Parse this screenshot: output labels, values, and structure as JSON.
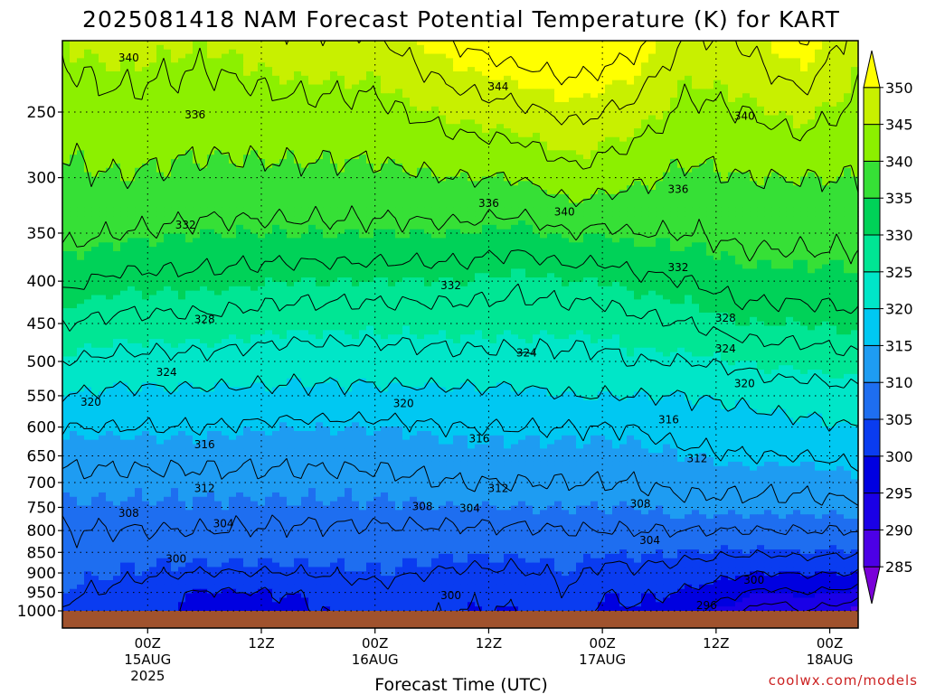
{
  "chart_data": {
    "type": "contour",
    "title": "2025081418 NAM Forecast Potential Temperature (K) for KART",
    "xlabel": "Forecast Time (UTC)",
    "ylabel": "",
    "credit": "coolwx.com/models",
    "y_scale": "log",
    "ylim": [
      1000,
      200
    ],
    "y_ticks": [
      250,
      300,
      350,
      400,
      450,
      500,
      550,
      600,
      650,
      700,
      750,
      800,
      850,
      900,
      950,
      1000
    ],
    "x_range_hours": [
      -3,
      81
    ],
    "x_ticks": [
      {
        "hour": 6,
        "lines": [
          "00Z",
          "15AUG",
          "2025"
        ]
      },
      {
        "hour": 18,
        "lines": [
          "12Z"
        ]
      },
      {
        "hour": 30,
        "lines": [
          "00Z",
          "16AUG"
        ]
      },
      {
        "hour": 42,
        "lines": [
          "12Z"
        ]
      },
      {
        "hour": 54,
        "lines": [
          "00Z",
          "17AUG"
        ]
      },
      {
        "hour": 66,
        "lines": [
          "12Z"
        ]
      },
      {
        "hour": 78,
        "lines": [
          "00Z",
          "18AUG"
        ]
      }
    ],
    "grid": true,
    "colorbar": {
      "levels": [
        285,
        290,
        295,
        300,
        305,
        310,
        315,
        320,
        325,
        330,
        335,
        340,
        345,
        350
      ],
      "colors": [
        "#7a00d8",
        "#4c00e6",
        "#1a00e6",
        "#0000e0",
        "#0a3cf0",
        "#1e6ef0",
        "#1e9cf2",
        "#00c8f2",
        "#00e6c8",
        "#00e694",
        "#00d258",
        "#36e036",
        "#8cf000",
        "#c8f000",
        "#ffff00"
      ]
    },
    "contour_step": 4,
    "field": {
      "hours": [
        -3,
        0,
        3,
        6,
        9,
        12,
        15,
        18,
        21,
        24,
        27,
        30,
        33,
        36,
        39,
        42,
        45,
        48,
        51,
        54,
        57,
        60,
        63,
        66,
        69,
        72,
        75,
        78,
        81
      ],
      "pressures": [
        1000,
        975,
        950,
        925,
        900,
        875,
        850,
        825,
        800,
        775,
        750,
        725,
        700,
        675,
        650,
        625,
        600,
        575,
        550,
        525,
        500,
        475,
        450,
        425,
        400,
        375,
        350,
        325,
        300,
        275,
        250,
        225,
        200
      ],
      "profiles": {
        "hour": [
          -3,
          3,
          12,
          21,
          30,
          39,
          45,
          51,
          54,
          57,
          63,
          69,
          72,
          75,
          81
        ],
        "theta": [
          [
            303,
            305,
            306,
            307,
            308,
            309.5,
            311,
            313,
            316,
            320,
            324,
            328,
            333,
            337,
            339,
            342
          ],
          [
            302,
            303,
            305,
            306,
            308,
            309.5,
            311,
            313,
            316,
            319,
            323,
            327,
            331,
            336,
            340,
            343
          ],
          [
            298.5,
            299.5,
            304,
            306,
            308,
            309.5,
            311,
            313,
            316,
            319,
            323,
            327,
            331,
            335,
            339,
            342
          ],
          [
            299,
            300,
            304,
            306,
            307.5,
            309.5,
            311,
            313,
            315,
            319,
            322,
            326,
            330,
            335,
            339,
            343
          ],
          [
            302,
            303,
            305,
            306,
            307.5,
            309.5,
            311,
            313,
            315,
            319,
            322,
            326,
            330,
            335,
            339,
            343
          ],
          [
            300,
            301,
            303.5,
            305.5,
            307.5,
            310,
            312,
            314,
            316,
            319,
            323,
            326,
            330,
            335,
            340,
            346
          ],
          [
            300,
            301,
            303.5,
            305.5,
            307.5,
            310,
            312,
            314,
            316,
            319,
            323,
            326,
            329,
            334,
            340,
            347
          ],
          [
            303,
            304,
            305,
            306,
            308,
            310,
            312,
            314,
            316,
            320,
            323,
            326,
            330,
            336,
            343,
            349
          ],
          [
            298.5,
            300,
            303,
            305,
            308,
            310,
            312,
            314,
            316,
            320,
            323,
            326,
            330,
            335,
            342,
            348
          ],
          [
            299.5,
            301,
            303.5,
            305.5,
            308,
            310,
            312,
            314,
            316,
            320,
            324,
            327,
            331,
            336,
            341,
            347
          ],
          [
            298,
            299.5,
            302.5,
            305,
            308,
            311,
            313,
            315,
            318,
            320,
            324,
            328,
            332,
            336,
            339,
            343
          ],
          [
            292,
            296,
            300.5,
            304.5,
            308,
            311,
            313,
            316,
            318,
            321,
            325,
            330,
            334,
            337,
            340,
            344
          ],
          [
            289,
            295,
            300,
            304.5,
            308,
            311,
            313,
            316,
            318.5,
            322,
            326,
            330,
            334,
            337,
            340,
            345
          ],
          [
            292,
            296,
            300.5,
            305,
            308,
            311,
            313,
            316,
            319,
            322,
            326,
            330,
            334,
            337,
            340,
            346
          ],
          [
            289,
            294.5,
            300,
            304.5,
            308,
            311,
            314,
            317,
            320,
            323,
            327,
            331,
            334,
            337,
            340,
            343
          ]
        ],
        "pressure_levels": [
          1000,
          950,
          900,
          850,
          800,
          750,
          700,
          650,
          600,
          550,
          500,
          450,
          400,
          350,
          300,
          250
        ]
      }
    },
    "contour_labels": [
      {
        "text": "340",
        "hour": 4,
        "p": 215
      },
      {
        "text": "336",
        "hour": 11,
        "p": 252
      },
      {
        "text": "332",
        "hour": 10,
        "p": 342
      },
      {
        "text": "328",
        "hour": 12,
        "p": 445
      },
      {
        "text": "324",
        "hour": 8,
        "p": 515
      },
      {
        "text": "320",
        "hour": 0,
        "p": 560
      },
      {
        "text": "316",
        "hour": 12,
        "p": 630
      },
      {
        "text": "312",
        "hour": 12,
        "p": 712
      },
      {
        "text": "308",
        "hour": 4,
        "p": 762
      },
      {
        "text": "304",
        "hour": 14,
        "p": 785
      },
      {
        "text": "300",
        "hour": 9,
        "p": 865
      },
      {
        "text": "344",
        "hour": 43,
        "p": 233
      },
      {
        "text": "336",
        "hour": 42,
        "p": 322
      },
      {
        "text": "340",
        "hour": 50,
        "p": 330
      },
      {
        "text": "332",
        "hour": 38,
        "p": 405
      },
      {
        "text": "320",
        "hour": 33,
        "p": 562
      },
      {
        "text": "316",
        "hour": 41,
        "p": 620
      },
      {
        "text": "312",
        "hour": 43,
        "p": 712
      },
      {
        "text": "308",
        "hour": 35,
        "p": 748
      },
      {
        "text": "304",
        "hour": 40,
        "p": 752
      },
      {
        "text": "324",
        "hour": 46,
        "p": 488
      },
      {
        "text": "300",
        "hour": 38,
        "p": 958
      },
      {
        "text": "340",
        "hour": 69,
        "p": 253
      },
      {
        "text": "336",
        "hour": 62,
        "p": 310
      },
      {
        "text": "332",
        "hour": 62,
        "p": 385
      },
      {
        "text": "328",
        "hour": 67,
        "p": 443
      },
      {
        "text": "324",
        "hour": 67,
        "p": 483
      },
      {
        "text": "320",
        "hour": 69,
        "p": 532
      },
      {
        "text": "316",
        "hour": 61,
        "p": 588
      },
      {
        "text": "312",
        "hour": 64,
        "p": 655
      },
      {
        "text": "308",
        "hour": 58,
        "p": 743
      },
      {
        "text": "304",
        "hour": 59,
        "p": 822
      },
      {
        "text": "300",
        "hour": 70,
        "p": 918
      },
      {
        "text": "296",
        "hour": 65,
        "p": 985
      }
    ]
  },
  "colors": {
    "ground": "#a0522d",
    "grid": "#000000",
    "credit": "#cc2222"
  }
}
